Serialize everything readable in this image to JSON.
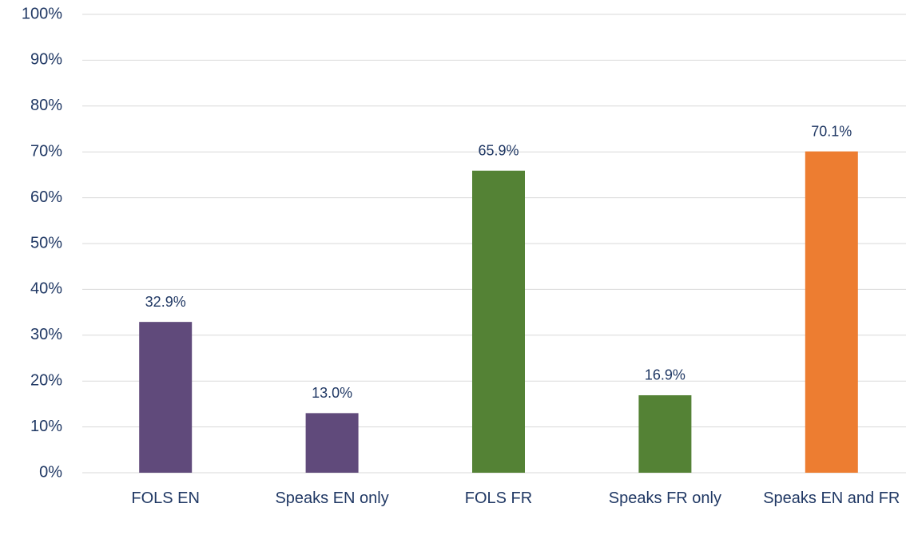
{
  "chart_data": {
    "type": "bar",
    "categories": [
      "FOLS EN",
      "Speaks EN only",
      "FOLS FR",
      "Speaks FR only",
      "Speaks EN and FR"
    ],
    "values": [
      32.9,
      13.0,
      65.9,
      16.9,
      70.1
    ],
    "value_labels": [
      "32.9%",
      "13.0%",
      "65.9%",
      "16.9%",
      "70.1%"
    ],
    "colors": [
      "#604a7b",
      "#604a7b",
      "#548235",
      "#548235",
      "#ed7d31"
    ],
    "ylim": [
      0,
      100
    ],
    "yticks": [
      {
        "value": 0,
        "label": "0%"
      },
      {
        "value": 10,
        "label": "10%"
      },
      {
        "value": 20,
        "label": "20%"
      },
      {
        "value": 30,
        "label": "30%"
      },
      {
        "value": 40,
        "label": "40%"
      },
      {
        "value": 50,
        "label": "50%"
      },
      {
        "value": 60,
        "label": "60%"
      },
      {
        "value": 70,
        "label": "70%"
      },
      {
        "value": 80,
        "label": "80%"
      },
      {
        "value": 90,
        "label": "90%"
      },
      {
        "value": 100,
        "label": "100%"
      }
    ],
    "grid": true
  }
}
